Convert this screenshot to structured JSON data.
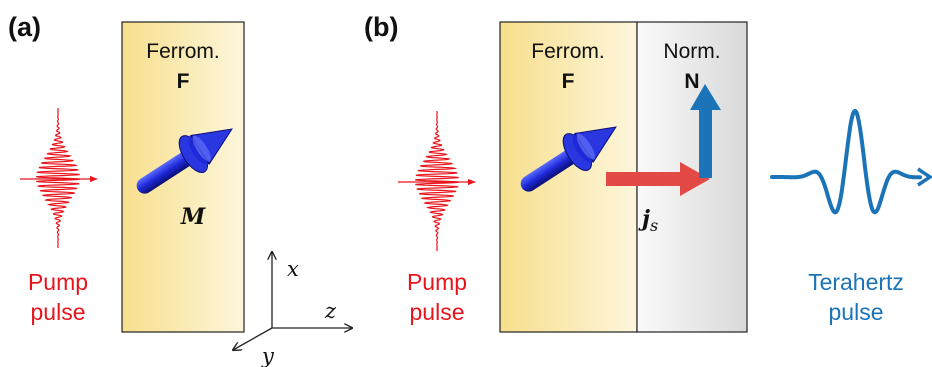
{
  "panel_a": {
    "label": "(a)",
    "ferro_title": "Ferrom.",
    "ferro_letter": "F",
    "magnetization": "M",
    "pump_label_1": "Pump",
    "pump_label_2": "pulse",
    "axis_x": "x",
    "axis_y": "y",
    "axis_z": "z"
  },
  "panel_b": {
    "label": "(b)",
    "ferro_title": "Ferrom.",
    "ferro_letter": "F",
    "normal_title": "Norm.",
    "normal_letter": "N",
    "spin_current": "j",
    "spin_current_sub": "s",
    "pump_label_1": "Pump",
    "pump_label_2": "pulse",
    "thz_label_1": "Terahertz",
    "thz_label_2": "pulse"
  },
  "colors": {
    "pump": "#e8141c",
    "thz": "#1b73b8",
    "magnet": "#1e28d8",
    "spin_arrow": "#e34a45"
  }
}
